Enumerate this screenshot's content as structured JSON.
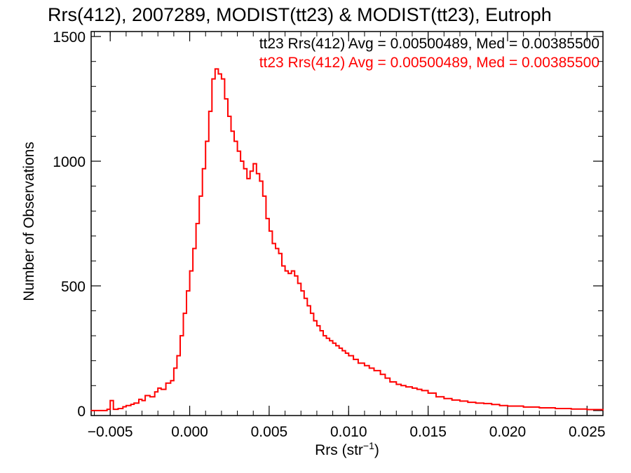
{
  "chart_data": {
    "type": "line",
    "title": "Rrs(412), 2007289, MODIST(tt23) & MODIST(tt23), Eutroph",
    "xlabel_main": "Rrs (str",
    "xlabel_sup": "−1",
    "xlabel_close": ")",
    "ylabel": "Number of Observations",
    "xlim": [
      -0.0062,
      0.026
    ],
    "ylim": [
      -20,
      1520
    ],
    "x_ticks": [
      -0.005,
      0.0,
      0.005,
      0.01,
      0.015,
      0.02,
      0.025
    ],
    "x_tick_labels": [
      "−0.005",
      "0.000",
      "0.005",
      "0.010",
      "0.015",
      "0.020",
      "0.025"
    ],
    "y_ticks": [
      0,
      500,
      1000,
      1500
    ],
    "y_tick_labels": [
      "0",
      "500",
      "1000",
      "1500"
    ],
    "legend": [
      {
        "text": "tt23 Rrs(412) Avg = 0.00500489, Med = 0.00385500",
        "color": "#000000"
      },
      {
        "text": "tt23 Rrs(412) Avg = 0.00500489, Med = 0.00385500",
        "color": "#ff0000"
      }
    ],
    "series": [
      {
        "color": "#ff0000",
        "x": [
          -0.0062,
          -0.0055,
          -0.0052,
          -0.005,
          -0.0048,
          -0.0045,
          -0.0042,
          -0.004,
          -0.0037,
          -0.0035,
          -0.0032,
          -0.003,
          -0.0028,
          -0.0025,
          -0.0022,
          -0.002,
          -0.0018,
          -0.0015,
          -0.0012,
          -0.001,
          -0.0008,
          -0.0006,
          -0.0004,
          -0.0002,
          0.0,
          0.0002,
          0.0004,
          0.0006,
          0.0008,
          0.001,
          0.0012,
          0.0014,
          0.0016,
          0.0018,
          0.002,
          0.0022,
          0.0024,
          0.0026,
          0.0028,
          0.003,
          0.0032,
          0.0034,
          0.0036,
          0.0038,
          0.004,
          0.0042,
          0.0044,
          0.0046,
          0.0048,
          0.005,
          0.0052,
          0.0054,
          0.0056,
          0.0058,
          0.006,
          0.0062,
          0.0064,
          0.0066,
          0.0068,
          0.007,
          0.0072,
          0.0074,
          0.0076,
          0.0078,
          0.008,
          0.0082,
          0.0084,
          0.0086,
          0.0088,
          0.009,
          0.0092,
          0.0094,
          0.0096,
          0.0098,
          0.01,
          0.0103,
          0.0106,
          0.011,
          0.0113,
          0.0116,
          0.012,
          0.0123,
          0.0126,
          0.013,
          0.0133,
          0.0136,
          0.014,
          0.0143,
          0.0146,
          0.015,
          0.0155,
          0.016,
          0.0165,
          0.017,
          0.0175,
          0.018,
          0.0185,
          0.019,
          0.0195,
          0.02,
          0.021,
          0.022,
          0.023,
          0.024,
          0.025,
          0.026
        ],
        "y": [
          0,
          0,
          5,
          40,
          5,
          8,
          15,
          20,
          25,
          30,
          45,
          40,
          60,
          55,
          75,
          90,
          85,
          110,
          120,
          170,
          220,
          300,
          390,
          480,
          560,
          650,
          750,
          860,
          970,
          1080,
          1200,
          1330,
          1370,
          1350,
          1330,
          1250,
          1180,
          1120,
          1080,
          1040,
          1000,
          970,
          930,
          960,
          990,
          950,
          920,
          860,
          770,
          720,
          670,
          650,
          630,
          580,
          560,
          550,
          560,
          540,
          510,
          480,
          450,
          420,
          390,
          360,
          340,
          320,
          300,
          290,
          280,
          270,
          260,
          250,
          240,
          230,
          220,
          205,
          190,
          180,
          170,
          160,
          145,
          130,
          115,
          105,
          100,
          95,
          90,
          85,
          80,
          70,
          55,
          48,
          42,
          38,
          33,
          30,
          28,
          24,
          20,
          18,
          14,
          11,
          8,
          6,
          4,
          2
        ]
      }
    ]
  }
}
